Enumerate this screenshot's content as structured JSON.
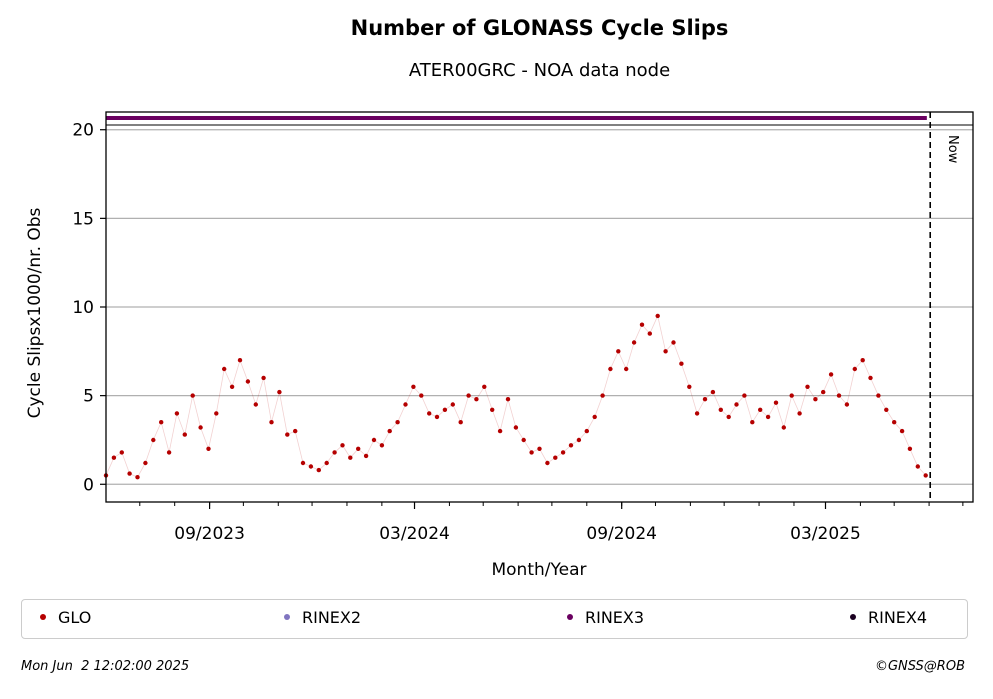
{
  "title": "Number of GLONASS Cycle Slips",
  "subtitle": "ATER00GRC - NOA data node",
  "timestamp": "Mon Jun  2 12:02:00 2025",
  "copyright": "©GNSS@ROB",
  "now_label": "Now",
  "colors": {
    "GLO": "#b50000",
    "RINEX2": "#8075c0",
    "RINEX3": "#6a0060",
    "RINEX4": "#1a0020",
    "grid": "#b0b0b0"
  },
  "legend": [
    {
      "label": "GLO",
      "color": "#b50000"
    },
    {
      "label": "RINEX2",
      "color": "#8075c0"
    },
    {
      "label": "RINEX3",
      "color": "#6a0060"
    },
    {
      "label": "RINEX4",
      "color": "#1a0020"
    }
  ],
  "chart_data": {
    "type": "scatter",
    "title": "Number of GLONASS Cycle Slips",
    "subtitle": "ATER00GRC - NOA data node",
    "xlabel": "Month/Year",
    "ylabel": "Cycle Slipsx1000/nr. Obs",
    "ylim": [
      -1,
      21
    ],
    "xlim": [
      "2023-06-01",
      "2025-07-10"
    ],
    "yticks": [
      0,
      5,
      10,
      15,
      20
    ],
    "xticks": [
      {
        "date": "2023-09-01",
        "label": "09/2023"
      },
      {
        "date": "2024-03-01",
        "label": "03/2024"
      },
      {
        "date": "2024-09-01",
        "label": "09/2024"
      },
      {
        "date": "2025-03-01",
        "label": "03/2025"
      }
    ],
    "grid": "horizontal",
    "now": "2025-06-02",
    "legend_position": "below",
    "series": [
      {
        "name": "GLO",
        "color": "#b50000",
        "x": [
          "2023-06-01",
          "2023-06-08",
          "2023-06-15",
          "2023-06-22",
          "2023-06-29",
          "2023-07-06",
          "2023-07-13",
          "2023-07-20",
          "2023-07-27",
          "2023-08-03",
          "2023-08-10",
          "2023-08-17",
          "2023-08-24",
          "2023-08-31",
          "2023-09-07",
          "2023-09-14",
          "2023-09-21",
          "2023-09-28",
          "2023-10-05",
          "2023-10-12",
          "2023-10-19",
          "2023-10-26",
          "2023-11-02",
          "2023-11-09",
          "2023-11-16",
          "2023-11-23",
          "2023-11-30",
          "2023-12-07",
          "2023-12-14",
          "2023-12-21",
          "2023-12-28",
          "2024-01-04",
          "2024-01-11",
          "2024-01-18",
          "2024-01-25",
          "2024-02-01",
          "2024-02-08",
          "2024-02-15",
          "2024-02-22",
          "2024-02-29",
          "2024-03-07",
          "2024-03-14",
          "2024-03-21",
          "2024-03-28",
          "2024-04-04",
          "2024-04-11",
          "2024-04-18",
          "2024-04-25",
          "2024-05-02",
          "2024-05-09",
          "2024-05-16",
          "2024-05-23",
          "2024-05-30",
          "2024-06-06",
          "2024-06-13",
          "2024-06-20",
          "2024-06-27",
          "2024-07-04",
          "2024-07-11",
          "2024-07-18",
          "2024-07-25",
          "2024-08-01",
          "2024-08-08",
          "2024-08-15",
          "2024-08-22",
          "2024-08-29",
          "2024-09-05",
          "2024-09-12",
          "2024-09-19",
          "2024-09-26",
          "2024-10-03",
          "2024-10-10",
          "2024-10-17",
          "2024-10-24",
          "2024-10-31",
          "2024-11-07",
          "2024-11-14",
          "2024-11-21",
          "2024-11-28",
          "2024-12-05",
          "2024-12-12",
          "2024-12-19",
          "2024-12-26",
          "2025-01-02",
          "2025-01-09",
          "2025-01-16",
          "2025-01-23",
          "2025-01-30",
          "2025-02-06",
          "2025-02-13",
          "2025-02-20",
          "2025-02-27",
          "2025-03-06",
          "2025-03-13",
          "2025-03-20",
          "2025-03-27",
          "2025-04-03",
          "2025-04-10",
          "2025-04-17",
          "2025-04-24",
          "2025-05-01",
          "2025-05-08",
          "2025-05-15",
          "2025-05-22",
          "2025-05-29"
        ],
        "y": [
          0.5,
          1.5,
          1.8,
          0.6,
          0.4,
          1.2,
          2.5,
          3.5,
          1.8,
          4.0,
          2.8,
          5.0,
          3.2,
          2.0,
          4.0,
          6.5,
          5.5,
          7.0,
          5.8,
          4.5,
          6.0,
          3.5,
          5.2,
          2.8,
          3.0,
          1.2,
          1.0,
          0.8,
          1.2,
          1.8,
          2.2,
          1.5,
          2.0,
          1.6,
          2.5,
          2.2,
          3.0,
          3.5,
          4.5,
          5.5,
          5.0,
          4.0,
          3.8,
          4.2,
          4.5,
          3.5,
          5.0,
          4.8,
          5.5,
          4.2,
          3.0,
          4.8,
          3.2,
          2.5,
          1.8,
          2.0,
          1.2,
          1.5,
          1.8,
          2.2,
          2.5,
          3.0,
          3.8,
          5.0,
          6.5,
          7.5,
          6.5,
          8.0,
          9.0,
          8.5,
          9.5,
          7.5,
          8.0,
          6.8,
          5.5,
          4.0,
          4.8,
          5.2,
          4.2,
          3.8,
          4.5,
          5.0,
          3.5,
          4.2,
          3.8,
          4.6,
          3.2,
          5.0,
          4.0,
          5.5,
          4.8,
          5.2,
          6.2,
          5.0,
          4.5,
          6.5,
          7.0,
          6.0,
          5.0,
          4.2,
          3.5,
          3.0,
          2.0,
          1.0,
          0.5
        ]
      },
      {
        "name": "RINEX3",
        "color": "#6a0060",
        "x": [
          "2023-06-01",
          "2025-05-30"
        ],
        "y": [
          20.6,
          20.6
        ]
      }
    ]
  }
}
